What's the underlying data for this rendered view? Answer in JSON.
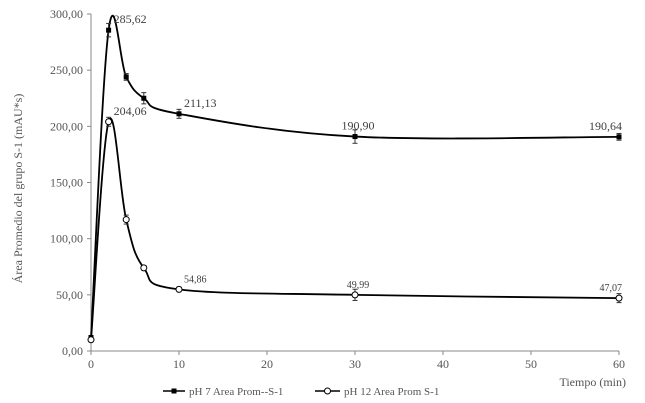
{
  "chart_data": {
    "type": "line",
    "xlabel": "Tiempo (min)",
    "ylabel": "Área Promedio del grupo  S-1 (mAU*s)",
    "xlim": [
      0,
      60
    ],
    "ylim": [
      0,
      300
    ],
    "x_ticks": [
      "0",
      "10",
      "20",
      "30",
      "40",
      "50",
      "60"
    ],
    "y_ticks": [
      "0,00",
      "50,00",
      "100,00",
      "150,00",
      "200,00",
      "250,00",
      "300,00"
    ],
    "grid": false,
    "legend_position": "bottom",
    "series": [
      {
        "name": "pH 7 Area Prom--S-1",
        "marker": "filled-square",
        "color": "#000000",
        "x": [
          0,
          2,
          4,
          6,
          10,
          30,
          60
        ],
        "y": [
          12,
          285.62,
          244,
          225,
          211.13,
          190.9,
          190.64
        ],
        "error": [
          0,
          6,
          3,
          5,
          4,
          6,
          3
        ],
        "labels": [
          {
            "index": 1,
            "text": "285,62",
            "size": "lg"
          },
          {
            "index": 4,
            "text": "211,13",
            "size": "lg"
          },
          {
            "index": 5,
            "text": "190,90",
            "size": "lg"
          },
          {
            "index": 6,
            "text": "190,64",
            "size": "lg"
          }
        ]
      },
      {
        "name": "pH 12 Area Prom S-1",
        "marker": "open-circle",
        "color": "#000000",
        "x": [
          0,
          2,
          4,
          6,
          10,
          30,
          60
        ],
        "y": [
          10,
          204.06,
          117,
          74,
          54.86,
          49.99,
          47.07
        ],
        "error": [
          0,
          4,
          4,
          2,
          2,
          5,
          4
        ],
        "labels": [
          {
            "index": 1,
            "text": "204,06",
            "size": "lg"
          },
          {
            "index": 4,
            "text": "54,86",
            "size": "sm"
          },
          {
            "index": 5,
            "text": "49,99",
            "size": "sm"
          },
          {
            "index": 6,
            "text": "47,07",
            "size": "sm"
          }
        ]
      }
    ]
  }
}
